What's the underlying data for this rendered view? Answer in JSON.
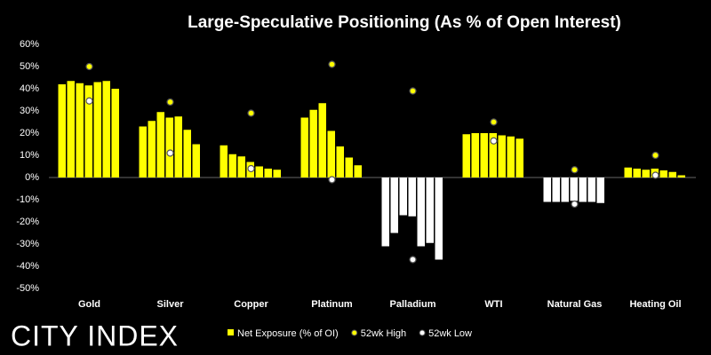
{
  "chart_data": {
    "type": "bar",
    "title": "Large-Speculative Positioning (As % of Open Interest)",
    "logo": "CITY INDEX",
    "categories": [
      "Gold",
      "Silver",
      "Copper",
      "Platinum",
      "Palladium",
      "WTI",
      "Natural Gas",
      "Heating Oil"
    ],
    "series": [
      {
        "name": "Net Exposure (% of OI)",
        "color": "#ffff00",
        "negative_color": "#ffffff",
        "values": [
          [
            42,
            43.5,
            42.5,
            41.5,
            43,
            43.5,
            40
          ],
          [
            23,
            25.5,
            29.5,
            27,
            27.5,
            21.5,
            15
          ],
          [
            14.5,
            10.5,
            9.5,
            7,
            5,
            4,
            3.5
          ],
          [
            27,
            30.5,
            33.5,
            21,
            14,
            9,
            5.5
          ],
          [
            -31,
            -25,
            -17,
            -17.5,
            -31,
            -29.5,
            -37
          ],
          [
            19.5,
            20,
            20,
            20,
            19,
            18.5,
            17.5
          ],
          [
            -11,
            -11,
            -11,
            -10.5,
            -11,
            -11,
            -11.5
          ],
          [
            4.5,
            4,
            3.5,
            4,
            3.2,
            2.5,
            1
          ]
        ]
      },
      {
        "name": "52wk High",
        "color": "#ffff00",
        "values": [
          50,
          34,
          29,
          51,
          39,
          25,
          3.5,
          10
        ]
      },
      {
        "name": "52wk Low",
        "color": "#ffffff",
        "values": [
          34.5,
          11,
          4,
          -1,
          -37,
          16.5,
          -12,
          1
        ]
      }
    ],
    "ylim": [
      -50,
      60
    ],
    "yticks": [
      {
        "value": -50,
        "label": "-50%"
      },
      {
        "value": -40,
        "label": "-40%"
      },
      {
        "value": -30,
        "label": "-30%"
      },
      {
        "value": -20,
        "label": "-20%"
      },
      {
        "value": -10,
        "label": "-10%"
      },
      {
        "value": 0,
        "label": "0%"
      },
      {
        "value": 10,
        "label": "10%"
      },
      {
        "value": 20,
        "label": "20%"
      },
      {
        "value": 30,
        "label": "30%"
      },
      {
        "value": 40,
        "label": "40%"
      },
      {
        "value": 50,
        "label": "50%"
      },
      {
        "value": 60,
        "label": "60%"
      }
    ]
  }
}
